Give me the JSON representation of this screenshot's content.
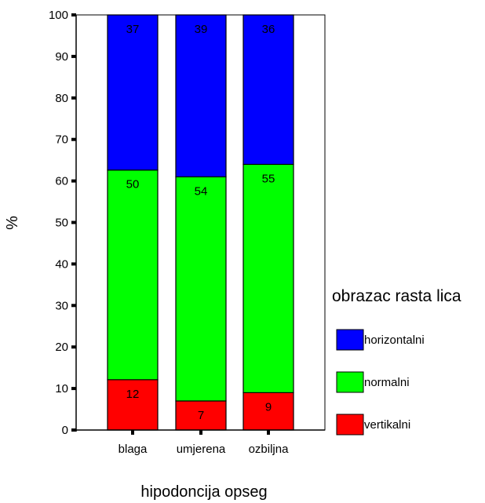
{
  "chart_data": {
    "type": "bar",
    "stacked": true,
    "percent": true,
    "categories": [
      "blaga",
      "umjerena",
      "ozbiljna"
    ],
    "series": [
      {
        "name": "vertikalni",
        "values": [
          12,
          7,
          9
        ],
        "color": "#ff0000"
      },
      {
        "name": "normalni",
        "values": [
          50,
          54,
          55
        ],
        "color": "#00ff00"
      },
      {
        "name": "horizontalni",
        "values": [
          37,
          39,
          36
        ],
        "color": "#0000ff"
      }
    ],
    "xlabel": "hipodoncija opseg",
    "ylabel": "%",
    "ylim": [
      0,
      100
    ],
    "yticks": [
      0,
      10,
      20,
      30,
      40,
      50,
      60,
      70,
      80,
      90,
      100
    ],
    "legend": {
      "title": "obrazac rasta lica",
      "placement": "right",
      "order": [
        "horizontalni",
        "normalni",
        "vertikalni"
      ]
    },
    "grid": false
  }
}
